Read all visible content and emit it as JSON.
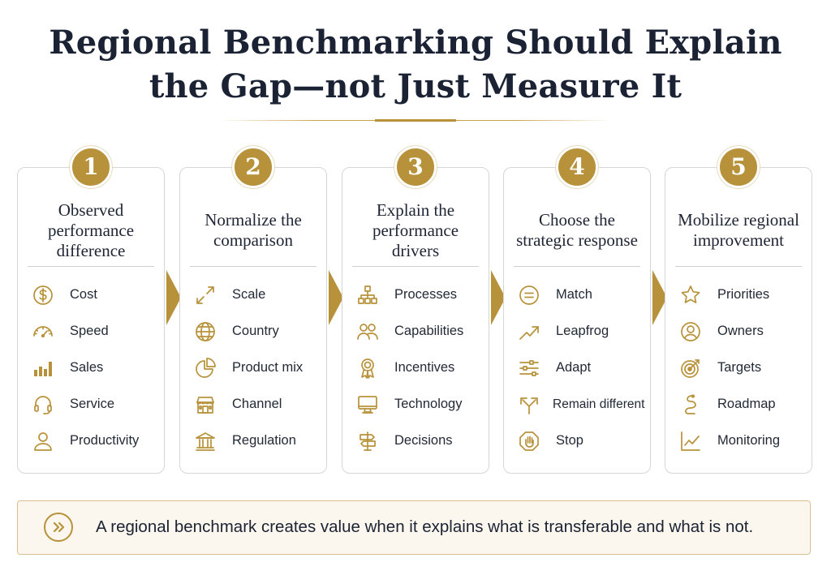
{
  "title": {
    "line1": "Regional Benchmarking Should Explain",
    "line2": "the Gap—not Just Measure It"
  },
  "accent_color": "#b8923a",
  "steps": [
    {
      "number": "1",
      "title": "Observed performance difference",
      "items": [
        {
          "label": "Cost",
          "icon": "dollar-icon"
        },
        {
          "label": "Speed",
          "icon": "speedometer-icon"
        },
        {
          "label": "Sales",
          "icon": "bar-chart-icon"
        },
        {
          "label": "Service",
          "icon": "headset-icon"
        },
        {
          "label": "Productivity",
          "icon": "person-icon"
        }
      ]
    },
    {
      "number": "2",
      "title": "Normalize the comparison",
      "items": [
        {
          "label": "Scale",
          "icon": "expand-arrows-icon"
        },
        {
          "label": "Country",
          "icon": "globe-icon"
        },
        {
          "label": "Product mix",
          "icon": "pie-chart-icon"
        },
        {
          "label": "Channel",
          "icon": "storefront-icon"
        },
        {
          "label": "Regulation",
          "icon": "courthouse-icon"
        }
      ]
    },
    {
      "number": "3",
      "title": "Explain the performance drivers",
      "items": [
        {
          "label": "Processes",
          "icon": "flowchart-icon"
        },
        {
          "label": "Capabilities",
          "icon": "people-icon"
        },
        {
          "label": "Incentives",
          "icon": "award-ribbon-icon"
        },
        {
          "label": "Technology",
          "icon": "monitor-icon"
        },
        {
          "label": "Decisions",
          "icon": "signpost-icon"
        }
      ]
    },
    {
      "number": "4",
      "title": "Choose the strategic response",
      "items": [
        {
          "label": "Match",
          "icon": "equals-circle-icon"
        },
        {
          "label": "Leapfrog",
          "icon": "trend-up-arrow-icon"
        },
        {
          "label": "Adapt",
          "icon": "sliders-icon"
        },
        {
          "label": "Remain different",
          "icon": "diverge-arrows-icon"
        },
        {
          "label": "Stop",
          "icon": "stop-hand-icon"
        }
      ]
    },
    {
      "number": "5",
      "title": "Mobilize regional improvement",
      "items": [
        {
          "label": "Priorities",
          "icon": "star-icon"
        },
        {
          "label": "Owners",
          "icon": "user-circle-icon"
        },
        {
          "label": "Targets",
          "icon": "target-icon"
        },
        {
          "label": "Roadmap",
          "icon": "winding-road-icon"
        },
        {
          "label": "Monitoring",
          "icon": "line-chart-icon"
        }
      ]
    }
  ],
  "conclusion": "A regional benchmark creates value when it explains what is transferable and what is not."
}
